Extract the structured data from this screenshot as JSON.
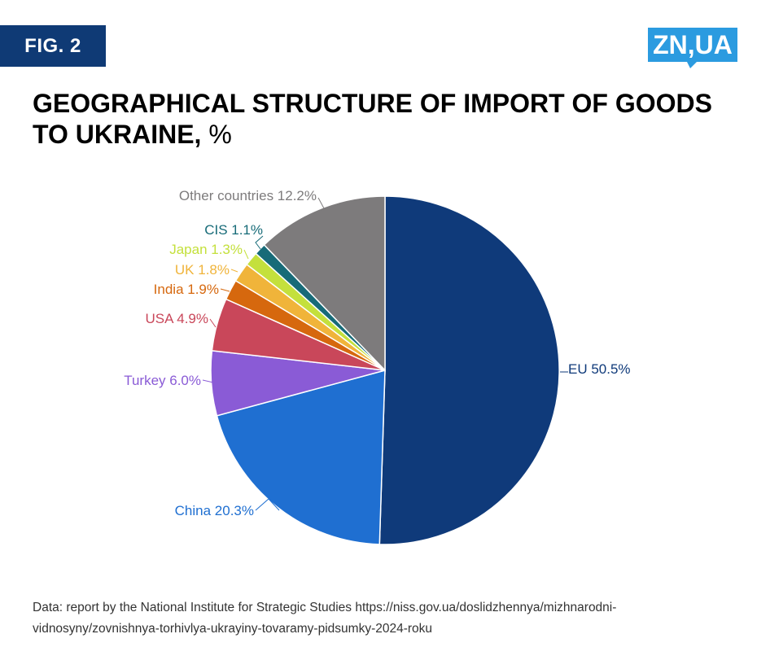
{
  "header": {
    "fig_label": "FIG. 2",
    "logo_text": "ZN,UA",
    "title_main": "GEOGRAPHICAL STRUCTURE OF IMPORT OF GOODS TO UKRAINE,",
    "title_unit": "%"
  },
  "colors": {
    "brand_blue": "#0f3a75",
    "logo_blue": "#2b9be0"
  },
  "chart_data": {
    "type": "pie",
    "title": "GEOGRAPHICAL STRUCTURE OF IMPORT OF GOODS TO UKRAINE, %",
    "start": "12 o'clock, clockwise",
    "slices": [
      {
        "label": "EU 50.5%",
        "name": "EU",
        "value": 50.5,
        "color": "#0f3a7a"
      },
      {
        "label": "China 20.3%",
        "name": "China",
        "value": 20.3,
        "color": "#1f6fd1"
      },
      {
        "label": "Turkey 6.0%",
        "name": "Turkey",
        "value": 6.0,
        "color": "#8a5bd6"
      },
      {
        "label": "USA 4.9%",
        "name": "USA",
        "value": 4.9,
        "color": "#c9475a"
      },
      {
        "label": "India 1.9%",
        "name": "India",
        "value": 1.9,
        "color": "#d6680e"
      },
      {
        "label": "UK 1.8%",
        "name": "UK",
        "value": 1.8,
        "color": "#f0b43a"
      },
      {
        "label": "Japan 1.3%",
        "name": "Japan",
        "value": 1.3,
        "color": "#c4e03c"
      },
      {
        "label": "CIS 1.1%",
        "name": "CIS",
        "value": 1.1,
        "color": "#176b78"
      },
      {
        "label": "Other countries 12.2%",
        "name": "Other countries",
        "value": 12.2,
        "color": "#7d7b7c"
      }
    ]
  },
  "footer": {
    "source": "Data: report by the National Institute for Strategic Studies https://niss.gov.ua/doslidzhennya/mizhnarodni-vidnosyny/zovnishnya-torhivlya-ukrayiny-tovaramy-pidsumky-2024-roku"
  }
}
